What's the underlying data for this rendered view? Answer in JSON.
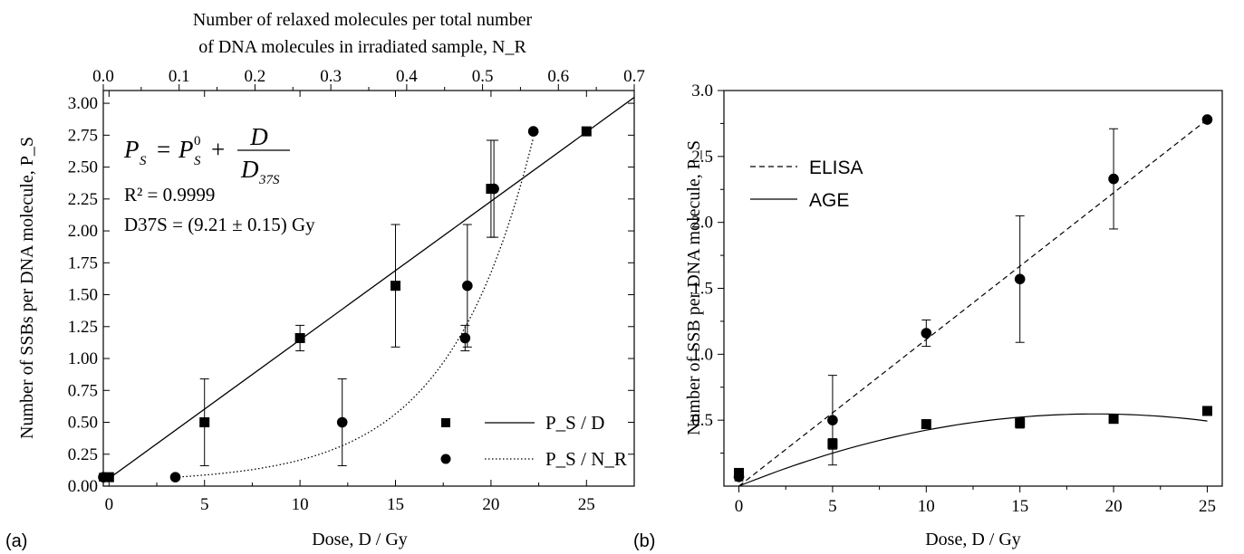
{
  "panels": {
    "a": {
      "label": "(a)"
    },
    "b": {
      "label": "(b)"
    }
  },
  "chart_data": [
    {
      "type": "scatter",
      "panel": "a",
      "xlabel": "Dose, D / Gy",
      "ylabel": "Number of SSBs per DNA molecule, P_S",
      "top_xlabel_line1": "Number of relaxed molecules per total number",
      "top_xlabel_line2": "of DNA molecules in irradiated sample, N_R",
      "xlim": [
        -0.3,
        27.5
      ],
      "ylim": [
        0,
        3.1
      ],
      "top_xlim": [
        0.0,
        0.7
      ],
      "x_ticks": [
        "0",
        "5",
        "10",
        "15",
        "20",
        "25"
      ],
      "y_ticks": [
        "0.00",
        "0.25",
        "0.50",
        "0.75",
        "1.00",
        "1.25",
        "1.50",
        "1.75",
        "2.00",
        "2.25",
        "2.50",
        "2.75",
        "3.00"
      ],
      "top_ticks": [
        "0.0",
        "0.1",
        "0.2",
        "0.3",
        "0.4",
        "0.5",
        "0.6",
        "0.7"
      ],
      "annotations": {
        "r2": "R² = 0.9999",
        "d37": "D37S = (9.21 ± 0.15) Gy",
        "equation": "P_S = P_S^0 + D / D_37S"
      },
      "series": [
        {
          "name": "P_S / D",
          "marker": "square",
          "line": "solid",
          "points": [
            {
              "x": 0,
              "y": 0.07,
              "err": 0.03
            },
            {
              "x": 5,
              "y": 0.5,
              "err": 0.34
            },
            {
              "x": 10,
              "y": 1.16,
              "err": 0.1
            },
            {
              "x": 15,
              "y": 1.57,
              "err": 0.48
            },
            {
              "x": 20,
              "y": 2.33,
              "err": 0.38
            },
            {
              "x": 25,
              "y": 2.78,
              "err": 0
            }
          ],
          "fit": {
            "intercept": 0.06,
            "slope": 0.1086
          }
        },
        {
          "name": "P_S / N_R",
          "marker": "circle",
          "line": "dotted",
          "points": [
            {
              "nr": 0.0,
              "y": 0.07,
              "err": 0.03
            },
            {
              "nr": 0.095,
              "y": 0.07,
              "err": 0
            },
            {
              "nr": 0.315,
              "y": 0.5,
              "err": 0.34
            },
            {
              "nr": 0.477,
              "y": 1.16,
              "err": 0.1
            },
            {
              "nr": 0.48,
              "y": 1.57,
              "err": 0.48
            },
            {
              "nr": 0.515,
              "y": 2.33,
              "err": 0.38
            },
            {
              "nr": 0.567,
              "y": 2.78,
              "err": 0
            }
          ]
        }
      ],
      "legend": [
        {
          "name": "P_S / D"
        },
        {
          "name": "P_S / N_R"
        }
      ]
    },
    {
      "type": "scatter",
      "panel": "b",
      "xlabel": "Dose, D / Gy",
      "ylabel": "Number of SSB per DNA molecule, P_S",
      "xlim": [
        -0.8,
        25.8
      ],
      "ylim": [
        0,
        3.0
      ],
      "x_ticks": [
        "0",
        "5",
        "10",
        "15",
        "20",
        "25"
      ],
      "y_ticks": [
        "0.5",
        "1.0",
        "1.5",
        "2.0",
        "2.5",
        "3.0"
      ],
      "legend": [
        {
          "name": "ELISA",
          "line": "dashed"
        },
        {
          "name": "AGE",
          "line": "solid"
        }
      ],
      "series": [
        {
          "name": "ELISA",
          "marker": "circle",
          "line": "dashed",
          "points": [
            {
              "x": 0,
              "y": 0.07,
              "err": 0.03
            },
            {
              "x": 5,
              "y": 0.5,
              "err": 0.34
            },
            {
              "x": 10,
              "y": 1.16,
              "err": 0.1
            },
            {
              "x": 15,
              "y": 1.57,
              "err": 0.48
            },
            {
              "x": 20,
              "y": 2.33,
              "err": 0.38
            },
            {
              "x": 25,
              "y": 2.78,
              "err": 0
            }
          ]
        },
        {
          "name": "AGE",
          "marker": "square",
          "line": "solid",
          "points": [
            {
              "x": 0,
              "y": 0.1,
              "err": 0.03
            },
            {
              "x": 5,
              "y": 0.32,
              "err": 0.04
            },
            {
              "x": 10,
              "y": 0.47,
              "err": 0.02
            },
            {
              "x": 15,
              "y": 0.48,
              "err": 0.04
            },
            {
              "x": 20,
              "y": 0.51,
              "err": 0.02
            },
            {
              "x": 25,
              "y": 0.57,
              "err": 0.02
            }
          ]
        }
      ]
    }
  ]
}
